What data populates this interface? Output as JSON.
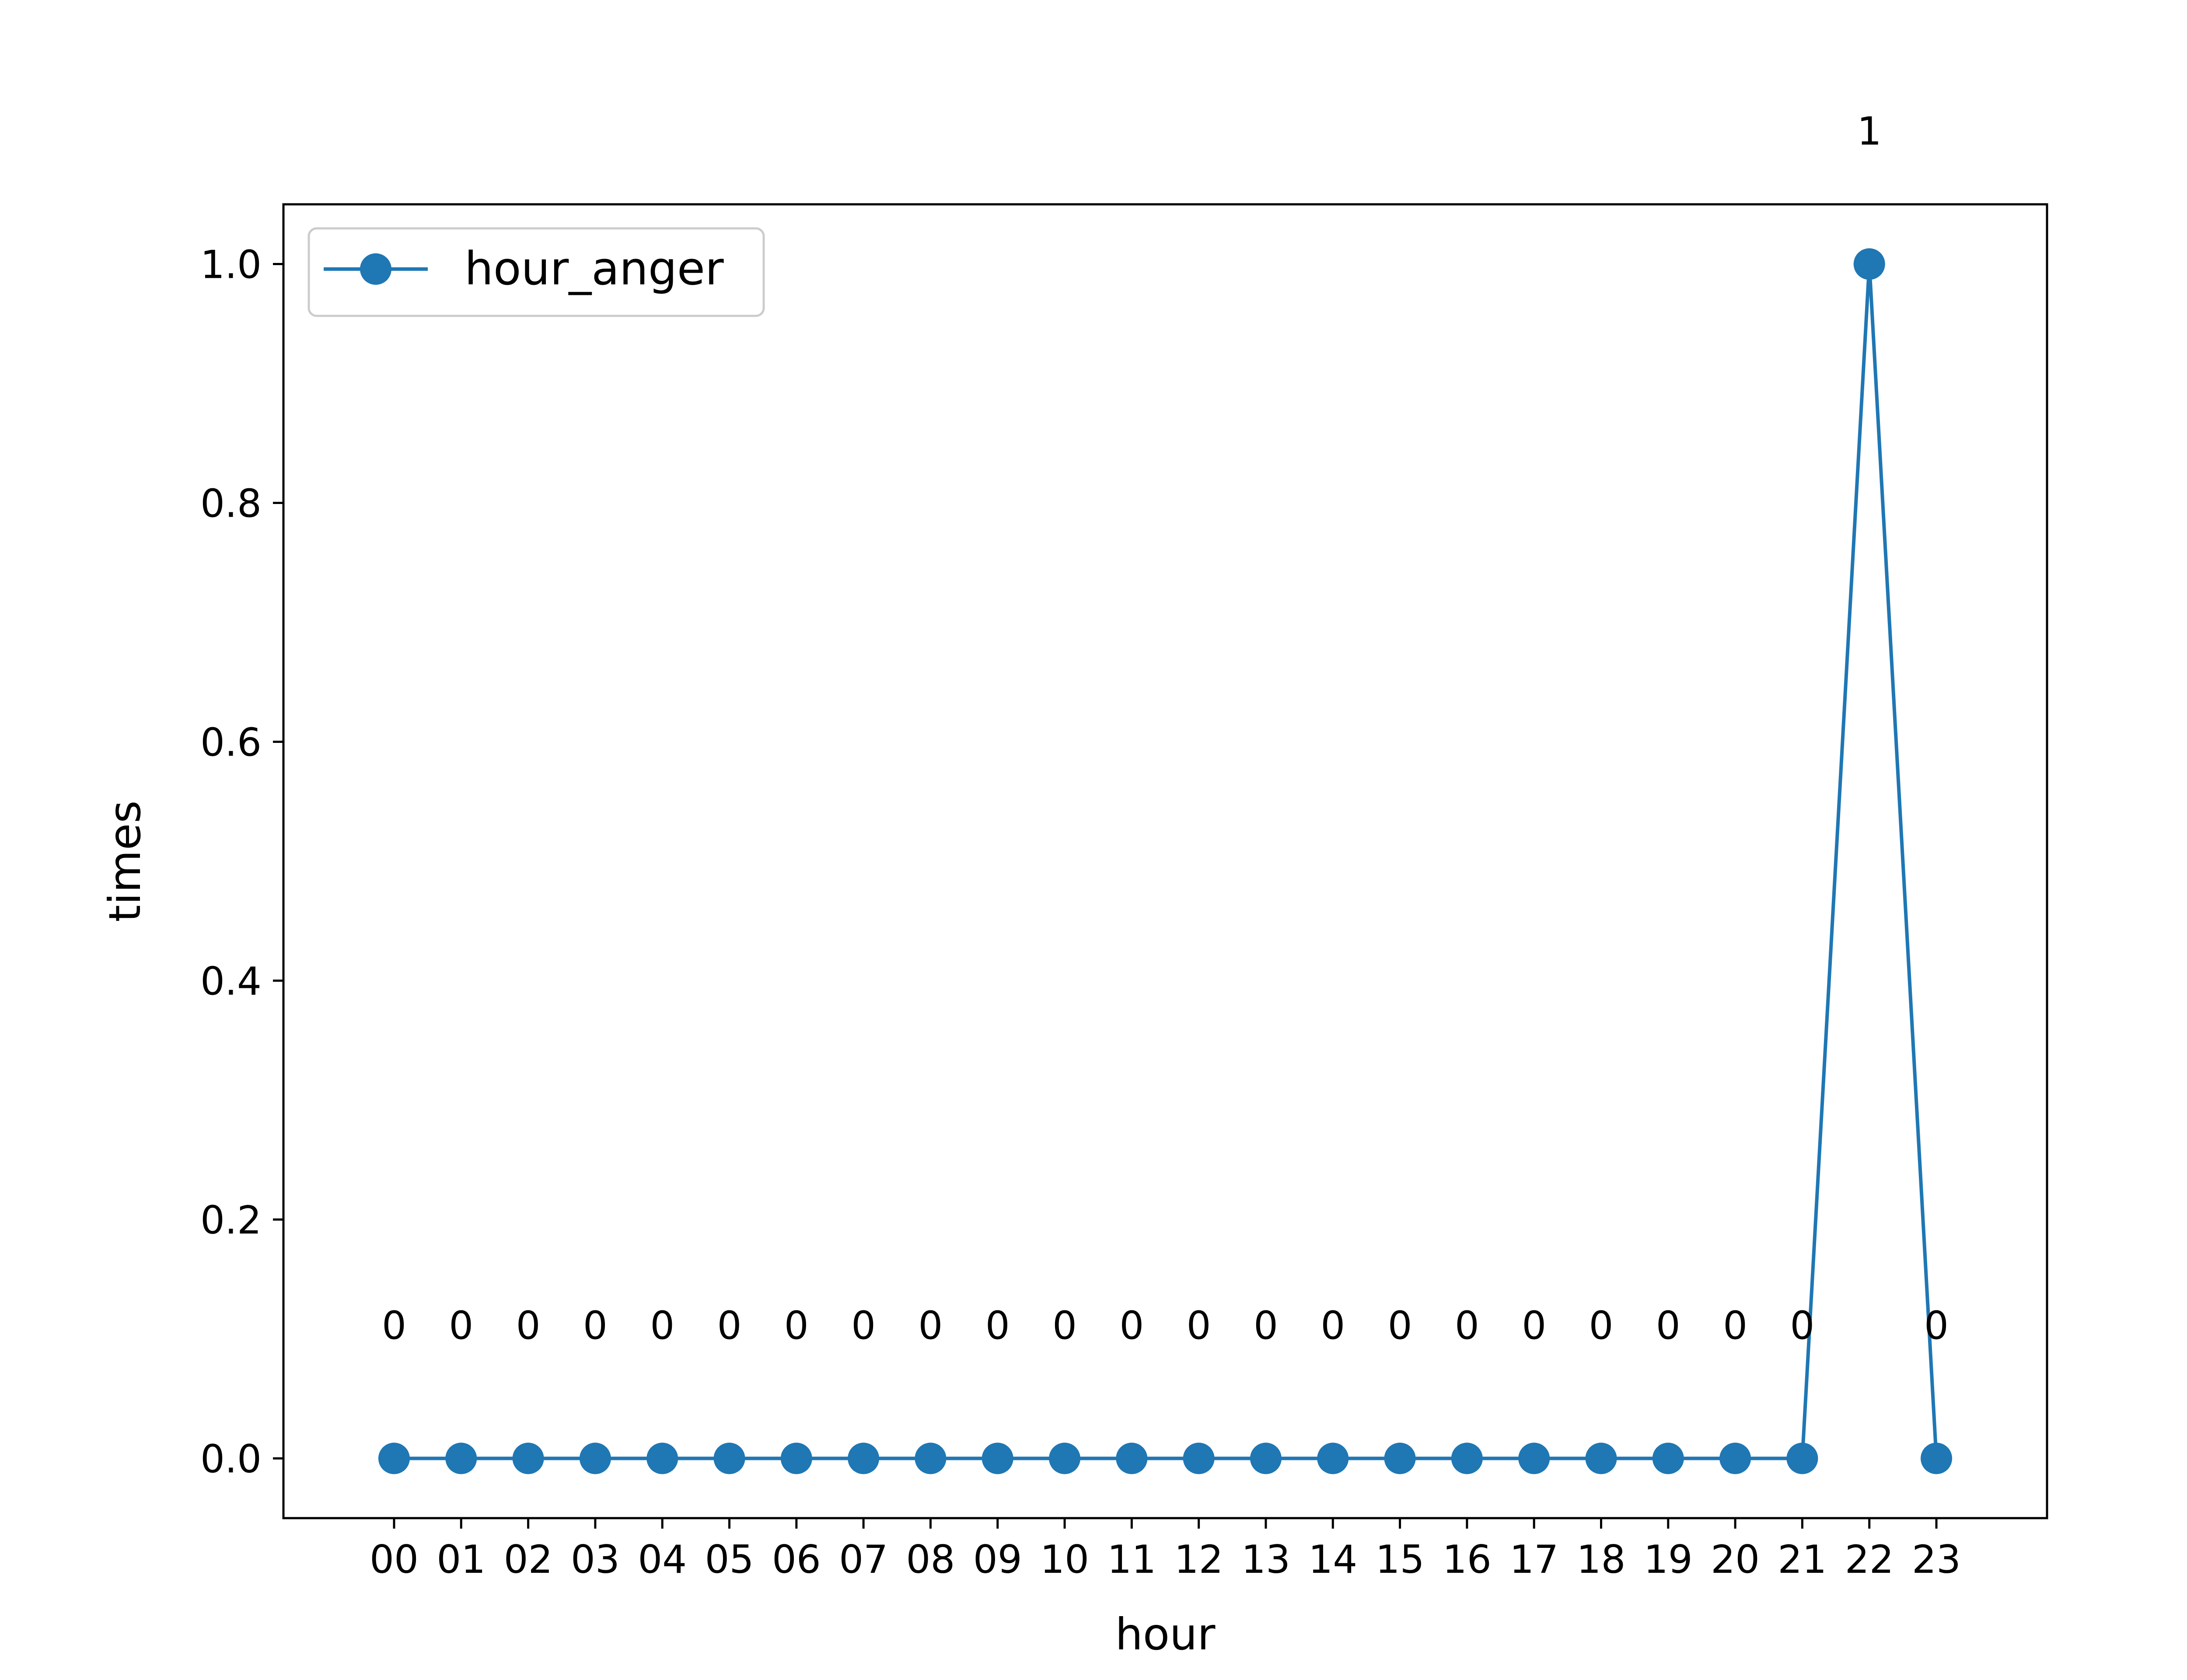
{
  "chart_data": {
    "type": "line",
    "title": "",
    "xlabel": "hour",
    "ylabel": "times",
    "categories": [
      "00",
      "01",
      "02",
      "03",
      "04",
      "05",
      "06",
      "07",
      "08",
      "09",
      "10",
      "11",
      "12",
      "13",
      "14",
      "15",
      "16",
      "17",
      "18",
      "19",
      "20",
      "21",
      "22",
      "23"
    ],
    "series": [
      {
        "name": "hour_anger",
        "values": [
          0,
          0,
          0,
          0,
          0,
          0,
          0,
          0,
          0,
          0,
          0,
          0,
          0,
          0,
          0,
          0,
          0,
          0,
          0,
          0,
          0,
          0,
          1,
          0
        ],
        "labels": [
          "0",
          "0",
          "0",
          "0",
          "0",
          "0",
          "0",
          "0",
          "0",
          "0",
          "0",
          "0",
          "0",
          "0",
          "0",
          "0",
          "0",
          "0",
          "0",
          "0",
          "0",
          "0",
          "1",
          "0"
        ],
        "color": "#1f77b4",
        "marker": "circle"
      }
    ],
    "ylim": [
      -0.05,
      1.05
    ],
    "yticks": [
      0.0,
      0.2,
      0.4,
      0.6,
      0.8,
      1.0
    ],
    "ytick_labels": [
      "0.0",
      "0.2",
      "0.4",
      "0.6",
      "0.8",
      "1.0"
    ],
    "grid": false,
    "legend_position": "upper-left"
  }
}
